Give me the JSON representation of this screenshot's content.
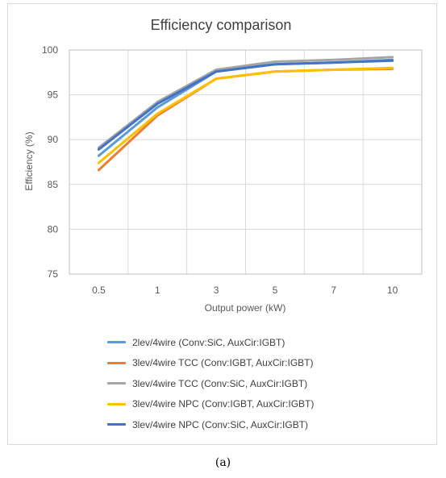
{
  "chart_data": {
    "type": "line",
    "title": "Efficiency comparison",
    "xlabel": "Output power (kW)",
    "ylabel": "Efficiency (%)",
    "categories": [
      "0.5",
      "1",
      "3",
      "5",
      "7",
      "10"
    ],
    "ylim": [
      75,
      100
    ],
    "yticks": [
      "75",
      "80",
      "85",
      "90",
      "95",
      "100"
    ],
    "grid": true,
    "legend_position": "bottom",
    "series": [
      {
        "name": "2lev/4wire (Conv:SiC, AuxCir:IGBT)",
        "color": "#5b9bd5",
        "values": [
          88.2,
          93.6,
          97.6,
          98.4,
          98.6,
          98.9
        ]
      },
      {
        "name": "3lev/4wire TCC (Conv:IGBT, AuxCir:IGBT)",
        "color": "#ed7d31",
        "values": [
          86.6,
          92.7,
          96.8,
          97.6,
          97.8,
          97.9
        ]
      },
      {
        "name": "3lev/4wire TCC (Conv:SiC, AuxCir:IGBT)",
        "color": "#a5a5a5",
        "values": [
          89.1,
          94.2,
          97.8,
          98.7,
          98.9,
          99.2
        ]
      },
      {
        "name": "3lev/4wire NPC (Conv:IGBT, AuxCir:IGBT)",
        "color": "#ffc000",
        "values": [
          87.4,
          92.9,
          96.8,
          97.6,
          97.8,
          98.0
        ]
      },
      {
        "name": "3lev/4wire NPC (Conv:SiC, AuxCir:IGBT)",
        "color": "#4472c4",
        "values": [
          88.9,
          94.0,
          97.6,
          98.4,
          98.6,
          98.8
        ]
      }
    ]
  },
  "caption": "(a)"
}
